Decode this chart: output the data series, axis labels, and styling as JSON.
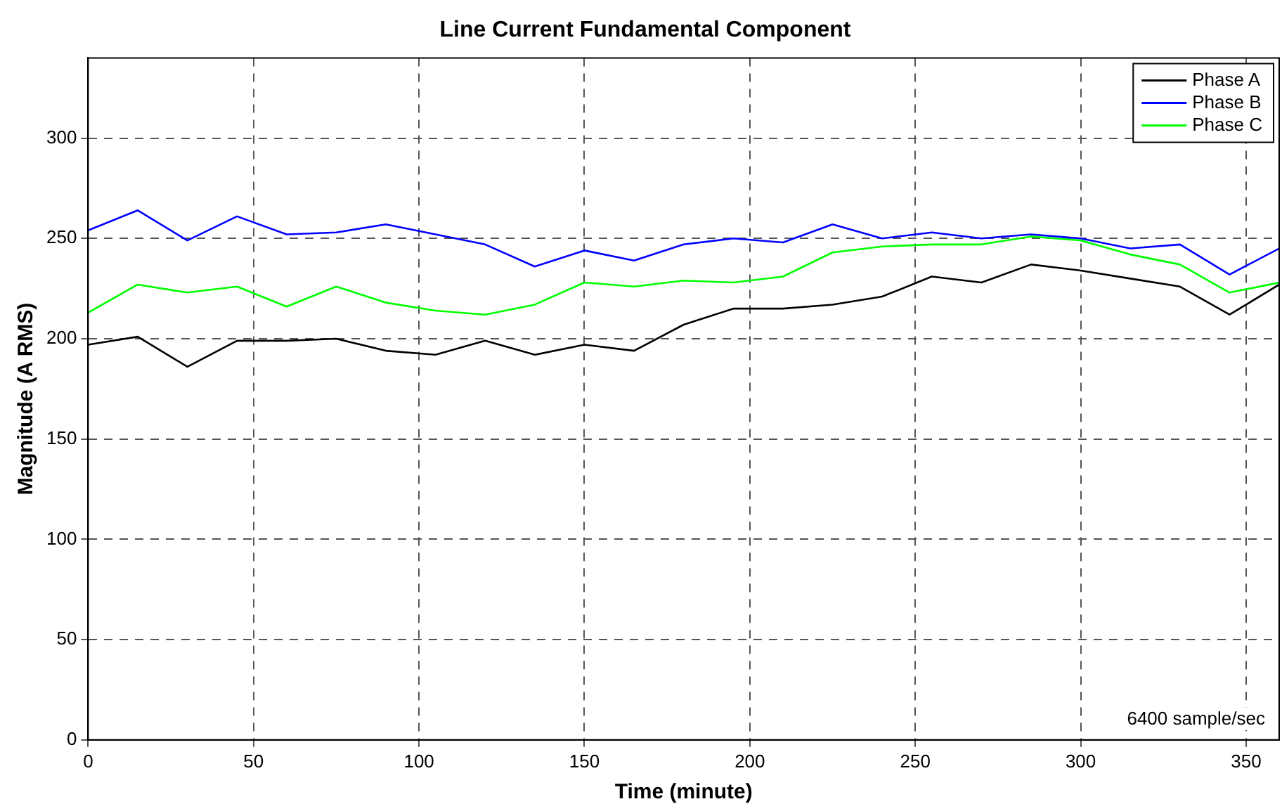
{
  "chart_data": {
    "type": "line",
    "title": "Line Current Fundamental Component",
    "xlabel": "Time (minute)",
    "ylabel": "Magnitude (A RMS)",
    "x": [
      0,
      15,
      30,
      45,
      60,
      75,
      90,
      105,
      120,
      135,
      150,
      165,
      180,
      195,
      210,
      225,
      240,
      255,
      270,
      285,
      300,
      315,
      330,
      345,
      360
    ],
    "series": [
      {
        "name": "Phase A",
        "color": "#000000",
        "values": [
          197,
          201,
          186,
          199,
          199,
          200,
          194,
          192,
          199,
          192,
          197,
          194,
          207,
          215,
          215,
          217,
          221,
          231,
          228,
          237,
          234,
          230,
          226,
          212,
          227
        ]
      },
      {
        "name": "Phase B",
        "color": "#0000ff",
        "values": [
          254,
          264,
          249,
          261,
          252,
          253,
          257,
          252,
          247,
          236,
          244,
          239,
          247,
          250,
          248,
          257,
          250,
          253,
          250,
          252,
          250,
          245,
          247,
          232,
          245
        ]
      },
      {
        "name": "Phase C",
        "color": "#00ff00",
        "values": [
          213,
          227,
          223,
          226,
          216,
          226,
          218,
          214,
          212,
          217,
          228,
          226,
          229,
          228,
          231,
          243,
          246,
          247,
          247,
          251,
          249,
          242,
          237,
          223,
          228
        ]
      }
    ],
    "xlim": [
      0,
      360
    ],
    "xticks": [
      0,
      50,
      100,
      150,
      200,
      250,
      300,
      350
    ],
    "ylim": [
      0,
      340
    ],
    "yticks": [
      0,
      50,
      100,
      150,
      200,
      250,
      300
    ],
    "grid": true,
    "legend": "top right",
    "marker": "none",
    "line_style": "solid",
    "annotations": [
      "6400 sample/sec"
    ]
  }
}
